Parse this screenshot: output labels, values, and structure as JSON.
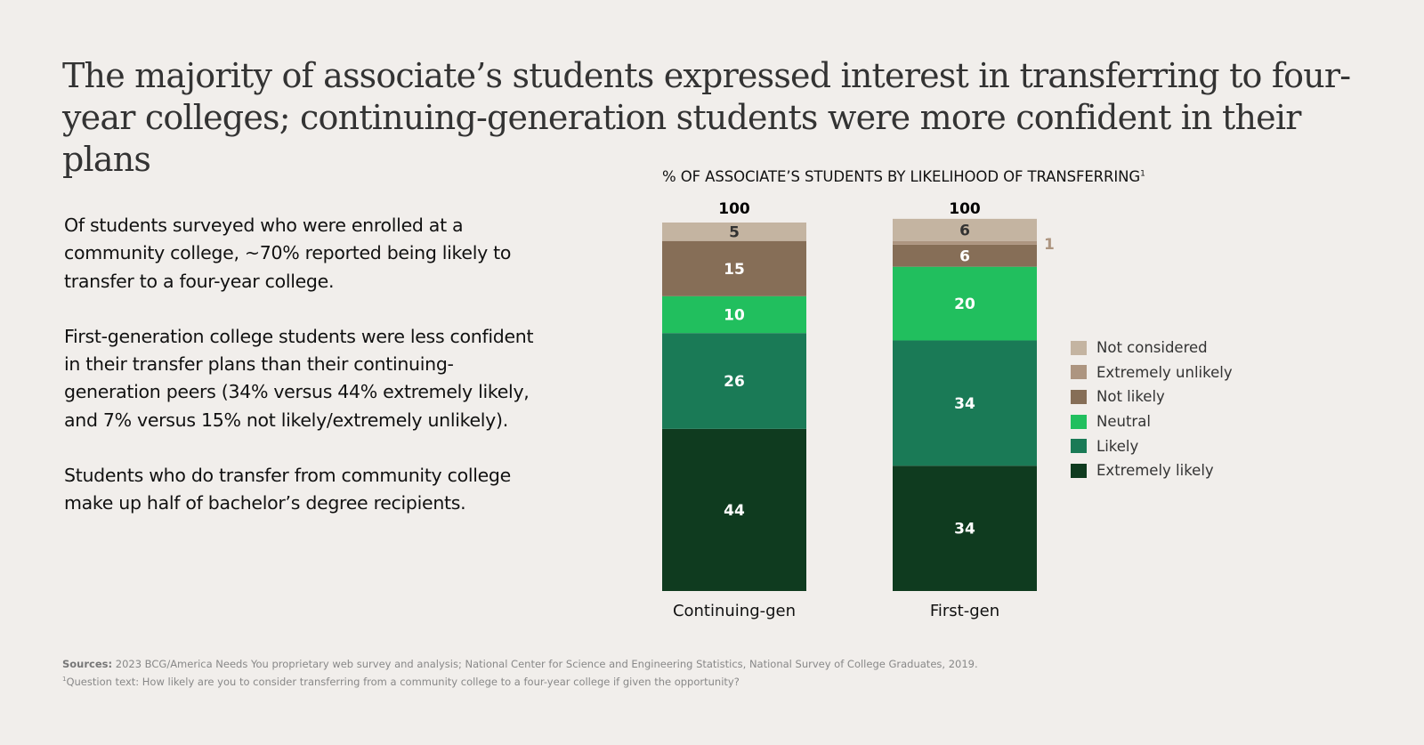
{
  "title": "The majority of associate’s students expressed interest in transferring to four-year colleges; continuing-generation students were more confident in their plans",
  "body": {
    "paragraphs": [
      "Of students surveyed who were enrolled at a community college, ~70% reported being likely to transfer to a four-year college.",
      "First-generation college students were less confident in their transfer plans than their continuing-generation peers (34% versus 44% extremely likely, and 7% versus 15% not likely/extremely unlikely).",
      "Students who do transfer from community college make up half of bachelor’s degree recipients."
    ]
  },
  "chart_data": {
    "type": "bar",
    "stacked": true,
    "title": "% OF ASSOCIATE’S STUDENTS BY LIKELIHOOD OF TRANSFERRING",
    "title_footnote": "1",
    "categories": [
      "Continuing-gen",
      "First-gen"
    ],
    "totals": [
      "100",
      "100"
    ],
    "ylim": [
      0,
      100
    ],
    "legend_position": "right",
    "series": [
      {
        "name": "Extremely likely",
        "color": "#0f3b1f",
        "label_color": "#ffffff",
        "values": [
          44,
          34
        ]
      },
      {
        "name": "Likely",
        "color": "#1a7a56",
        "label_color": "#ffffff",
        "values": [
          26,
          34
        ]
      },
      {
        "name": "Neutral",
        "color": "#21bf5e",
        "label_color": "#ffffff",
        "values": [
          10,
          20
        ]
      },
      {
        "name": "Not likely",
        "color": "#866e57",
        "label_color": "#ffffff",
        "values": [
          15,
          6
        ]
      },
      {
        "name": "Extremely unlikely",
        "color": "#ad9580",
        "label_color": "#ad9580",
        "values": [
          0,
          1
        ],
        "label_outside": true
      },
      {
        "name": "Not considered",
        "color": "#c4b4a1",
        "label_color": "#333333",
        "values": [
          5,
          6
        ]
      }
    ]
  },
  "legend": [
    {
      "name": "Not considered",
      "color": "#c4b4a1"
    },
    {
      "name": "Extremely unlikely",
      "color": "#ad9580"
    },
    {
      "name": "Not likely",
      "color": "#866e57"
    },
    {
      "name": "Neutral",
      "color": "#21bf5e"
    },
    {
      "name": "Likely",
      "color": "#1a7a56"
    },
    {
      "name": "Extremely likely",
      "color": "#0f3b1f"
    }
  ],
  "footer": {
    "sources_label": "Sources:",
    "sources_text": " 2023 BCG/America Needs You proprietary web survey and analysis; National Center for Science and Engineering Statistics, National Survey of College Graduates, 2019.",
    "footnote_mark": "1",
    "footnote_text": "Question text: How likely are you to consider transferring from a community college to a four-year college if given the opportunity?"
  }
}
